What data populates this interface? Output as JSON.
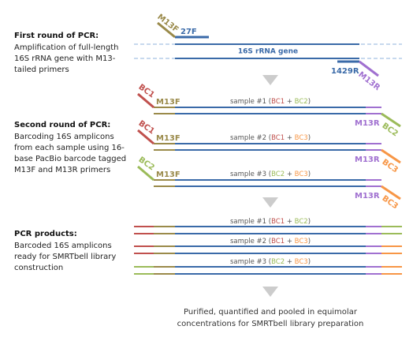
{
  "sections": [
    {
      "title": "First round of PCR:",
      "lines": [
        "Amplification of full-length",
        "16S rRNA gene with M13-",
        "tailed primers"
      ]
    },
    {
      "title": "Second round of PCR:",
      "lines": [
        "Barcoding 16S amplicons",
        "from each sample using 16-",
        "base PacBio barcode tagged",
        "M13F and M13R primers"
      ]
    },
    {
      "title": "PCR products:",
      "lines": [
        "Barcoded 16S amplicons",
        "ready for SMRTbell library",
        "construction"
      ]
    }
  ],
  "round1": {
    "gene": "16S rRNA gene",
    "forward_primer": "27F",
    "reverse_primer": "1429R",
    "tag_forward": "M13F",
    "tag_reverse": "M13R"
  },
  "round2": {
    "rows": [
      {
        "left_barcode": "BC1",
        "left_tag": "M13F",
        "right_tag": "M13R",
        "right_barcode": "BC2",
        "label": [
          "sample #1 (",
          "BC1",
          " + ",
          "BC2",
          ")"
        ]
      },
      {
        "left_barcode": "BC1",
        "left_tag": "M13F",
        "right_tag": "M13R",
        "right_barcode": "BC3",
        "label": [
          "sample #2 (",
          "BC1",
          " + ",
          "BC3",
          ")"
        ]
      },
      {
        "left_barcode": "BC2",
        "left_tag": "M13F",
        "right_tag": "M13R",
        "right_barcode": "BC3",
        "label": [
          "sample #3 (",
          "BC2",
          " + ",
          "BC3",
          ")"
        ]
      }
    ]
  },
  "products": {
    "rows": [
      {
        "label": [
          "sample #1 (",
          "BC1",
          " + ",
          "BC2",
          ")"
        ]
      },
      {
        "label": [
          "sample #2 (",
          "BC1",
          " + ",
          "BC3",
          ")"
        ]
      },
      {
        "label": [
          "sample #3 (",
          "BC2",
          " + ",
          "BC3",
          ")"
        ]
      }
    ]
  },
  "footer": [
    "Purified, quantified and pooled in equimolar",
    "concentrations for SMRTbell library preparation"
  ]
}
